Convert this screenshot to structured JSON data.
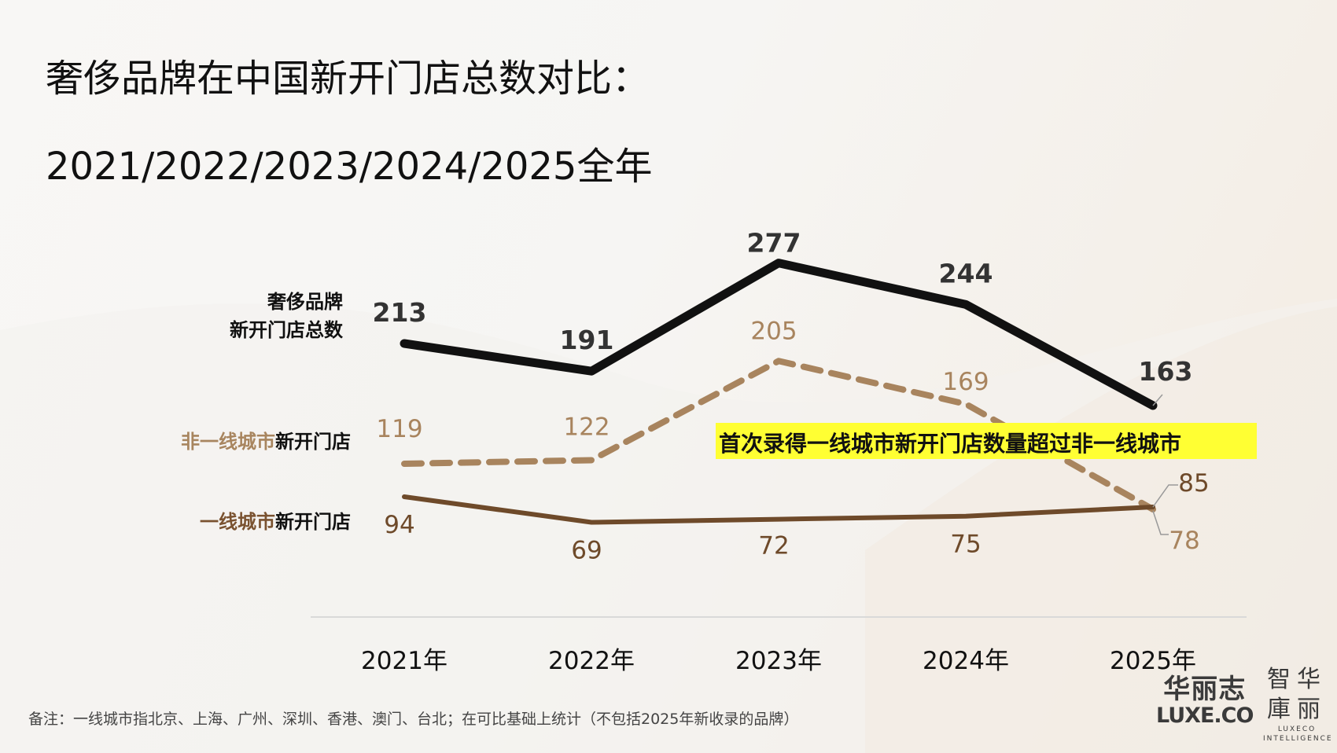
{
  "title": {
    "line1": "奢侈品牌在中国新开门店总数对比：",
    "line2": "2021/2022/2023/2024/2025全年"
  },
  "chart_data": {
    "type": "line",
    "title": "奢侈品牌在中国新开门店总数对比：2021/2022/2023/2024/2025全年",
    "xlabel": "",
    "ylabel": "",
    "categories": [
      "2021年",
      "2022年",
      "2023年",
      "2024年",
      "2025年"
    ],
    "ylim": [
      0,
      300
    ],
    "grid": false,
    "series": [
      {
        "name": "奢侈品牌新开门店总数",
        "label_lines": [
          "奢侈品牌",
          "新开门店总数"
        ],
        "values": [
          213,
          191,
          277,
          244,
          163
        ],
        "color": "#111111",
        "line_style": "solid-thick"
      },
      {
        "name": "非一线城市新开门店",
        "label_parts": [
          {
            "text": "非一线城市",
            "color": "#a8855f"
          },
          {
            "text": "新开门店",
            "color": "#111111"
          }
        ],
        "values": [
          119,
          122,
          205,
          169,
          78
        ],
        "color": "#a8845e",
        "line_style": "dashed"
      },
      {
        "name": "一线城市新开门店",
        "label_parts": [
          {
            "text": "一线城市",
            "color": "#7a5230"
          },
          {
            "text": "新开门店",
            "color": "#111111"
          }
        ],
        "values": [
          94,
          69,
          72,
          75,
          85
        ],
        "color": "#6e4a2a",
        "line_style": "solid"
      }
    ],
    "annotation": {
      "text": "首次录得一线城市新开门店数量超过非一线城市",
      "highlight_color": "#ffff33"
    }
  },
  "footnote": "备注：一线城市指北京、上海、广州、深圳、香港、澳门、台北；在可比基础上统计（不包括2025年新收录的品牌）",
  "logos": {
    "luxe_cn": "华丽志",
    "luxe_en": "LUXE.CO",
    "intel_cn_row1": "智华",
    "intel_cn_row2": "庫丽",
    "intel_en_row1": "LUXECO",
    "intel_en_row2": "INTELLIGENCE"
  }
}
